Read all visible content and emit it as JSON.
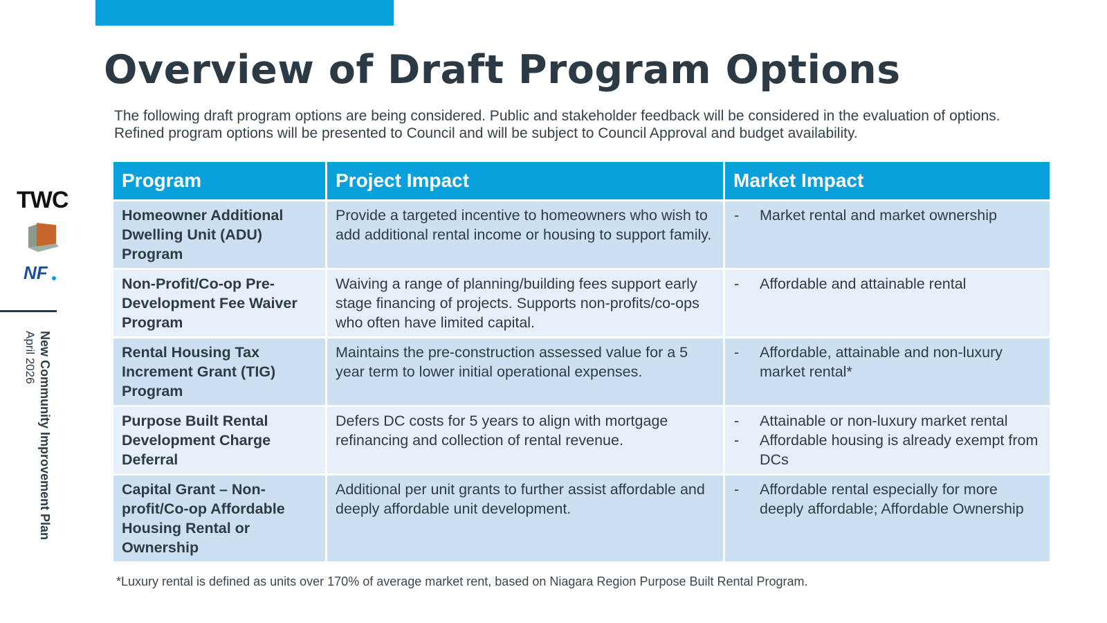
{
  "slide": {
    "title": "Overview of Draft Program Options",
    "intro": "The following draft program options are being considered. Public and stakeholder feedback will be considered in the evaluation of options. Refined program options will be presented to Council and will be subject to Council Approval and budget availability.",
    "footnote": "*Luxury rental is defined as units over 170% of average market rent, based on Niagara Region Purpose Built Rental Program."
  },
  "sidebar": {
    "logo_text": "TWC",
    "plan_name": "New Community Improvement Plan",
    "plan_date": "April 2026"
  },
  "table": {
    "headers": [
      "Program",
      "Project Impact",
      "Market Impact"
    ],
    "rows": [
      {
        "program": "Homeowner Additional Dwelling Unit (ADU) Program",
        "project_impact": "Provide a targeted incentive to homeowners who wish to add additional rental income or housing to support family.",
        "market_impact": [
          "Market rental and market ownership"
        ]
      },
      {
        "program": "Non-Profit/Co-op Pre-Development Fee Waiver Program",
        "project_impact": "Waiving a range of planning/building fees support early stage financing of projects. Supports non-profits/co-ops who often have limited capital.",
        "market_impact": [
          "Affordable and attainable rental"
        ]
      },
      {
        "program": "Rental Housing Tax Increment Grant (TIG) Program",
        "project_impact": "Maintains the pre-construction assessed value for a 5 year term to lower initial operational expenses.",
        "market_impact": [
          "Affordable, attainable and non-luxury market rental*"
        ]
      },
      {
        "program": "Purpose Built Rental Development Charge Deferral",
        "project_impact": "Defers DC costs for 5 years to align with mortgage refinancing and collection of rental revenue.",
        "market_impact": [
          "Attainable or non-luxury market rental",
          "Affordable housing is already exempt from DCs"
        ]
      },
      {
        "program": "Capital Grant – Non-profit/Co-op Affordable Housing Rental or Ownership",
        "project_impact": "Additional per unit grants to further assist affordable and deeply affordable unit development.",
        "market_impact": [
          "Affordable rental especially for more deeply affordable; Affordable Ownership"
        ]
      }
    ]
  },
  "colors": {
    "accent": "#0aa0dc",
    "title": "#2b3a45",
    "row_odd": "#cde0f1",
    "row_even": "#e7eff8"
  }
}
